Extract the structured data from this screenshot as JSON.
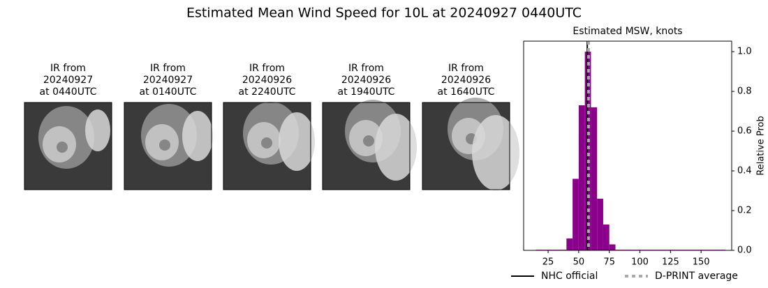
{
  "title": "Estimated Mean Wind Speed for 10L at 20240927 0440UTC",
  "panels": [
    {
      "lines": [
        "IR from",
        "20240927",
        "at 0440UTC"
      ]
    },
    {
      "lines": [
        "IR from",
        "20240927",
        "at 0140UTC"
      ]
    },
    {
      "lines": [
        "IR from",
        "20240926",
        "at 2240UTC"
      ]
    },
    {
      "lines": [
        "IR from",
        "20240926",
        "at 1940UTC"
      ]
    },
    {
      "lines": [
        "IR from",
        "20240926",
        "at 1640UTC"
      ]
    }
  ],
  "chart_data": {
    "type": "histogram",
    "title": "Estimated MSW, knots",
    "ylabel": "Relative Prob",
    "color": "#8b008b",
    "bins": [
      15,
      20,
      25,
      30,
      35,
      40,
      45,
      50,
      55,
      60,
      65,
      70,
      75,
      80,
      85,
      90,
      95,
      100,
      105,
      110,
      115,
      120,
      125,
      130,
      135,
      140,
      145,
      150,
      155,
      160,
      165,
      170
    ],
    "values": [
      0.003,
      0.003,
      0.003,
      0.003,
      0.003,
      0.06,
      0.36,
      0.73,
      1.0,
      0.72,
      0.26,
      0.13,
      0.03,
      0.003,
      0.003,
      0.003,
      0.003,
      0.003,
      0.003,
      0.003,
      0.003,
      0.003,
      0.003,
      0.003,
      0.003,
      0.003,
      0.003,
      0.003,
      0.003,
      0.003,
      0.003
    ],
    "xlim": [
      5,
      175
    ],
    "ylim": [
      0,
      1.053
    ],
    "xticks": [
      25,
      50,
      75,
      100,
      125,
      150
    ],
    "yticks": [
      {
        "value": 0,
        "label": "0.0"
      },
      {
        "value": 0.2,
        "label": "0.2"
      },
      {
        "value": 0.4,
        "label": "0.4"
      },
      {
        "value": 0.6,
        "label": "0.6"
      },
      {
        "value": 0.8,
        "label": "0.8"
      },
      {
        "value": 1.0,
        "label": "1.0"
      }
    ],
    "lines": [
      {
        "name": "NHC official",
        "value": 57,
        "color": "#000000",
        "dashed": false
      },
      {
        "name": "D-PRINT average",
        "value": 58,
        "color": "#aaaaaa",
        "dashed": true
      }
    ],
    "legend": "bottom"
  }
}
